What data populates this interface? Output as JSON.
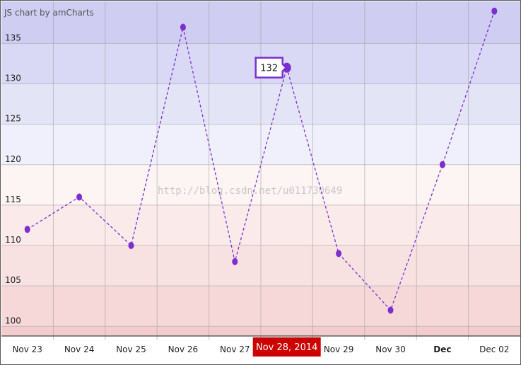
{
  "credit": "JS chart by amCharts",
  "watermark": "http://blog.csdn.net/u011730649",
  "chart_data": {
    "type": "line",
    "categories": [
      "Nov 23",
      "Nov 24",
      "Nov 25",
      "Nov 26",
      "Nov 27",
      "Nov 28, 2014",
      "Nov 29",
      "Nov 30",
      "Dec",
      "Dec 02"
    ],
    "x_tick_labels": [
      "Nov 23",
      "Nov 24",
      "Nov 25",
      "Nov 26",
      "Nov 27",
      "Nov 28",
      "Nov 29",
      "Nov 30",
      "Dec",
      "Dec 02"
    ],
    "bold_x_labels": [
      "Dec"
    ],
    "values": [
      112,
      116,
      110,
      137,
      108,
      132,
      109,
      102,
      120,
      139
    ],
    "ylim": [
      98.8,
      140.2
    ],
    "yticks": [
      100,
      105,
      110,
      115,
      120,
      125,
      130,
      135
    ],
    "grid": true,
    "line_style": "dashed",
    "colors": {
      "line": "#7b2fd0",
      "point": "#7b2fd0",
      "cursor_bg": "#cc0000",
      "cursor_text": "#ffffff",
      "balloon_border": "#7b2fd0",
      "grid": "#9a9a9a",
      "bands": [
        "#f3cdcd",
        "#f7d8d8",
        "#f8e1e1",
        "#faeaea",
        "#fdf4f4",
        "#f0f0fc",
        "#e4e4f7",
        "#d9d9f5",
        "#cfcdf2"
      ]
    },
    "cursor": {
      "category": "Nov 28, 2014",
      "value": 132
    }
  }
}
